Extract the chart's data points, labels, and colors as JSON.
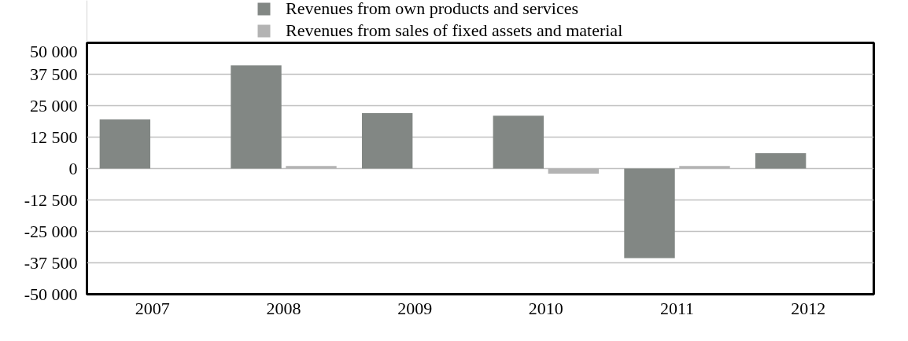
{
  "chart_data": {
    "type": "bar",
    "categories": [
      "2007",
      "2008",
      "2009",
      "2010",
      "2011",
      "2012"
    ],
    "series": [
      {
        "name": "Revenues from own products and services",
        "color": "#828784",
        "values": [
          19500,
          41000,
          22000,
          21000,
          -35600,
          6100
        ]
      },
      {
        "name": "Revenues from sales of fixed assets and material",
        "color": "#b3b3b3",
        "values": [
          null,
          1000,
          null,
          -2000,
          1000,
          null
        ]
      }
    ],
    "ylim": [
      -50000,
      50000
    ],
    "yticks": [
      {
        "value": -50000,
        "label": "-50 000"
      },
      {
        "value": -37500,
        "label": "-37 500"
      },
      {
        "value": -25000,
        "label": "-25 000"
      },
      {
        "value": -12500,
        "label": "-12 500"
      },
      0,
      {
        "value": 12500,
        "label": "12 500"
      },
      {
        "value": 25000,
        "label": "25 000"
      },
      {
        "value": 37500,
        "label": "37 500"
      },
      {
        "value": 50000,
        "label": "50 000"
      }
    ],
    "grid": "y",
    "legend": "top"
  }
}
